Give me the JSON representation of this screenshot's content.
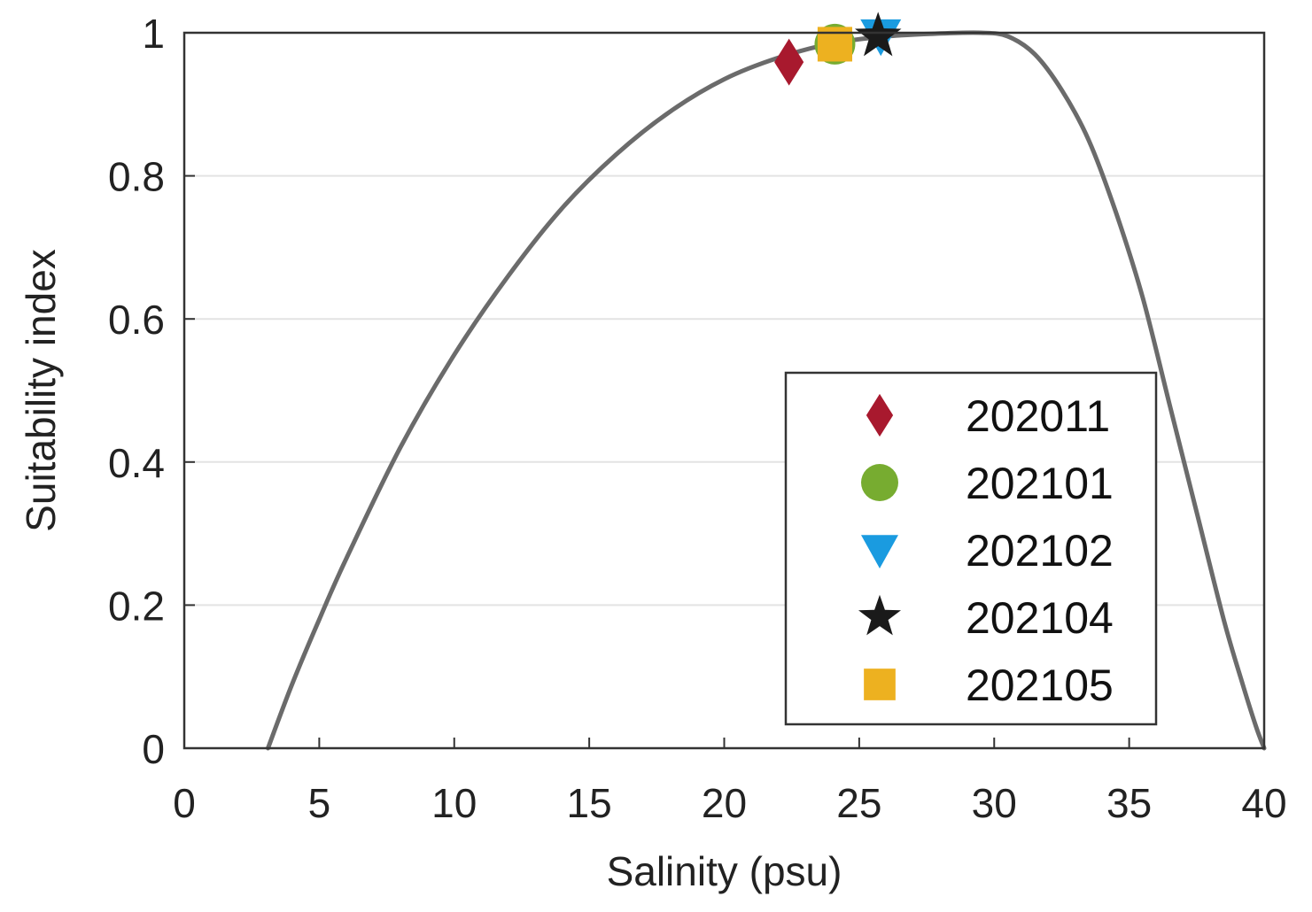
{
  "chart_data": {
    "type": "line",
    "xlabel": "Salinity (psu)",
    "ylabel": "Suitability index",
    "xlim": [
      0,
      40
    ],
    "ylim": [
      0,
      1
    ],
    "xticks": [
      "0",
      "5",
      "10",
      "15",
      "20",
      "25",
      "30",
      "35",
      "40"
    ],
    "yticks": [
      "0",
      "0.2",
      "0.4",
      "0.6",
      "0.8",
      "1"
    ],
    "grid": "horizontal",
    "legend_placement": "bottom-right",
    "curve": {
      "color": "#6b6b6b",
      "x": [
        3.1,
        4,
        5,
        6,
        8,
        10,
        12,
        14,
        16,
        18,
        20,
        22,
        24,
        26,
        28,
        29.5,
        30.5,
        31.5,
        32.5,
        33.5,
        34.5,
        35.5,
        36.5,
        37.5,
        38.5,
        39.2,
        39.7,
        40
      ],
      "y": [
        0,
        0.09,
        0.18,
        0.265,
        0.42,
        0.55,
        0.66,
        0.755,
        0.83,
        0.89,
        0.935,
        0.965,
        0.985,
        0.995,
        0.999,
        1.0,
        0.995,
        0.97,
        0.92,
        0.85,
        0.75,
        0.63,
        0.48,
        0.33,
        0.18,
        0.09,
        0.03,
        0
      ]
    },
    "series": [
      {
        "name": "202011",
        "marker": "diamond",
        "color": "#a8192e",
        "x": [
          22.4
        ],
        "y": [
          0.959
        ]
      },
      {
        "name": "202101",
        "marker": "circle",
        "color": "#77ac30",
        "x": [
          24.1
        ],
        "y": [
          0.984
        ]
      },
      {
        "name": "202102",
        "marker": "triangle-down",
        "color": "#1a9be0",
        "x": [
          25.8
        ],
        "y": [
          0.996
        ]
      },
      {
        "name": "202104",
        "marker": "star",
        "color": "#1a1a1a",
        "x": [
          25.7
        ],
        "y": [
          0.995
        ]
      },
      {
        "name": "202105",
        "marker": "square",
        "color": "#edb120",
        "x": [
          24.1
        ],
        "y": [
          0.984
        ]
      }
    ],
    "plot_order": [
      1,
      4,
      0,
      2,
      3
    ]
  }
}
